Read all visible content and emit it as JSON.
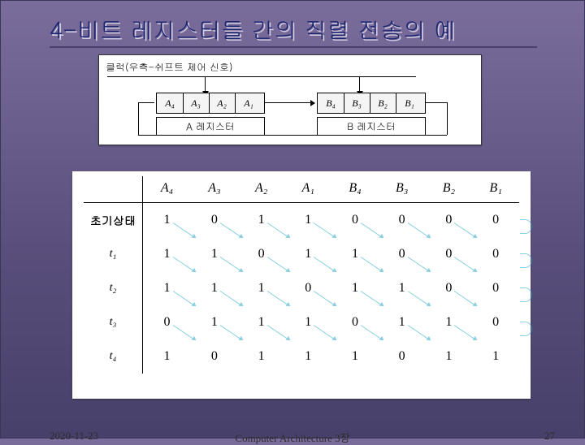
{
  "title": "4-비트 레지스터들 간의 직렬 전송의 예",
  "diagram": {
    "clock_label": "클럭(우측-쉬프트 제어 신호)",
    "regA_caption": "A 레지스터",
    "regB_caption": "B 레지스터",
    "A_cells": [
      "A₄",
      "A₃",
      "A₂",
      "A₁"
    ],
    "B_cells": [
      "B₄",
      "B₃",
      "B₂",
      "B₁"
    ]
  },
  "table": {
    "headers": [
      "",
      "A₄",
      "A₃",
      "A₂",
      "A₁",
      "B₄",
      "B₃",
      "B₂",
      "B₁"
    ],
    "row_labels": [
      "초기상태",
      "t₁",
      "t₂",
      "t₃",
      "t₄"
    ],
    "rows": [
      [
        1,
        0,
        1,
        1,
        0,
        0,
        0,
        0
      ],
      [
        1,
        1,
        0,
        1,
        1,
        0,
        0,
        0
      ],
      [
        1,
        1,
        1,
        0,
        1,
        1,
        0,
        0
      ],
      [
        0,
        1,
        1,
        1,
        0,
        1,
        1,
        0
      ],
      [
        1,
        0,
        1,
        1,
        1,
        0,
        1,
        1
      ]
    ],
    "arrow_color": "#2aa9c5",
    "border_color": "#000000",
    "font_size": 16
  },
  "footer": {
    "date": "2020-11-23",
    "center": "Computer Architecture 3장",
    "page": "27"
  },
  "colors": {
    "bg_top": "#7a6d9c",
    "bg_bottom": "#46406a",
    "title_color": "#1c2670",
    "title_shadow": "#d3cde0",
    "panel_bg": "#ffffff"
  }
}
